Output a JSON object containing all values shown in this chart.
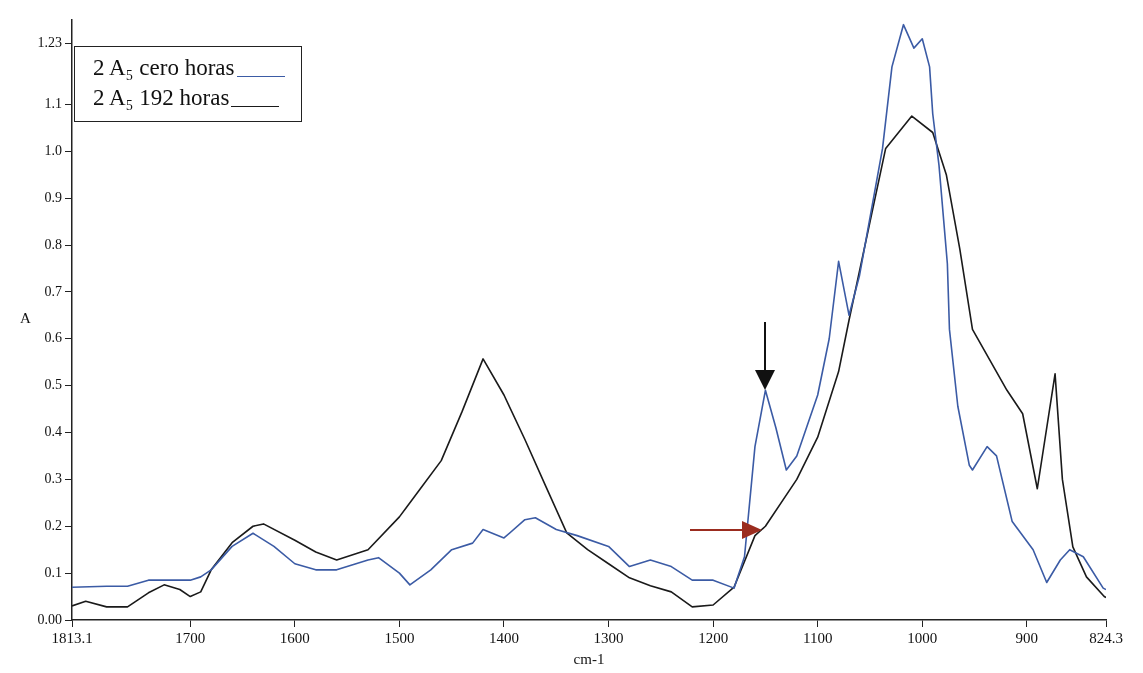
{
  "chart_data": {
    "type": "line",
    "xlabel": "cm-1",
    "ylabel": "A",
    "xlim": [
      1813.1,
      824.3
    ],
    "ylim": [
      0,
      1.28
    ],
    "xticks": [
      1813.1,
      1700,
      1600,
      1500,
      1400,
      1300,
      1200,
      1100,
      1000,
      900,
      824.3
    ],
    "yticks": [
      {
        "value": 0,
        "label": "0.00"
      },
      0.1,
      0.2,
      0.3,
      0.4,
      0.5,
      0.6,
      0.7,
      0.8,
      0.9,
      {
        "value": 1,
        "label": "1.0"
      },
      1.1,
      1.23
    ],
    "legend": "top left",
    "marker": "none",
    "line_style": "solid",
    "series": [
      {
        "name": "2 A₅ cero horas",
        "color": "#3b5ba5",
        "x": [
          1813.1,
          1780,
          1760,
          1740,
          1700,
          1690,
          1680,
          1660,
          1640,
          1620,
          1600,
          1580,
          1560,
          1530,
          1520,
          1500,
          1490,
          1470,
          1450,
          1430,
          1420,
          1400,
          1380,
          1370,
          1350,
          1330,
          1300,
          1280,
          1260,
          1240,
          1220,
          1200,
          1180,
          1170,
          1160,
          1150,
          1140,
          1130,
          1120,
          1100,
          1089,
          1080,
          1070,
          1060,
          1038,
          1029,
          1018,
          1008,
          1000,
          993,
          990,
          984,
          976,
          974,
          966,
          955,
          952,
          938,
          929,
          914,
          894,
          881,
          868,
          859,
          846,
          827,
          824.3
        ],
        "values": [
          0.07,
          0.072,
          0.072,
          0.085,
          0.085,
          0.092,
          0.107,
          0.157,
          0.185,
          0.157,
          0.12,
          0.107,
          0.107,
          0.128,
          0.133,
          0.1,
          0.075,
          0.107,
          0.15,
          0.164,
          0.193,
          0.175,
          0.214,
          0.218,
          0.193,
          0.18,
          0.157,
          0.114,
          0.128,
          0.114,
          0.085,
          0.085,
          0.068,
          0.135,
          0.37,
          0.49,
          0.41,
          0.32,
          0.35,
          0.48,
          0.6,
          0.765,
          0.65,
          0.735,
          1.006,
          1.18,
          1.27,
          1.22,
          1.24,
          1.18,
          1.08,
          0.97,
          0.76,
          0.62,
          0.456,
          0.33,
          0.32,
          0.37,
          0.35,
          0.21,
          0.15,
          0.08,
          0.128,
          0.15,
          0.135,
          0.068,
          0.065
        ]
      },
      {
        "name": "2 A₅ 192 horas",
        "color": "#1a1a1a",
        "x": [
          1813.1,
          1800,
          1780,
          1760,
          1740,
          1725,
          1710,
          1700,
          1690,
          1680,
          1660,
          1640,
          1630,
          1600,
          1580,
          1560,
          1530,
          1500,
          1480,
          1460,
          1440,
          1420,
          1400,
          1380,
          1360,
          1340,
          1320,
          1300,
          1280,
          1260,
          1240,
          1220,
          1200,
          1180,
          1160,
          1150,
          1120,
          1100,
          1080,
          1070,
          1048,
          1035,
          1010,
          990,
          977,
          964,
          952,
          919,
          904,
          890,
          873,
          866,
          856,
          843,
          826,
          824.3
        ],
        "values": [
          0.03,
          0.04,
          0.028,
          0.028,
          0.058,
          0.075,
          0.065,
          0.05,
          0.06,
          0.107,
          0.165,
          0.2,
          0.205,
          0.17,
          0.145,
          0.128,
          0.15,
          0.22,
          0.28,
          0.34,
          0.445,
          0.557,
          0.48,
          0.385,
          0.285,
          0.186,
          0.15,
          0.12,
          0.09,
          0.073,
          0.06,
          0.028,
          0.032,
          0.07,
          0.18,
          0.2,
          0.3,
          0.39,
          0.53,
          0.64,
          0.87,
          1.006,
          1.075,
          1.04,
          0.95,
          0.79,
          0.62,
          0.49,
          0.44,
          0.28,
          0.525,
          0.3,
          0.156,
          0.092,
          0.05,
          0.048
        ]
      }
    ]
  }
}
